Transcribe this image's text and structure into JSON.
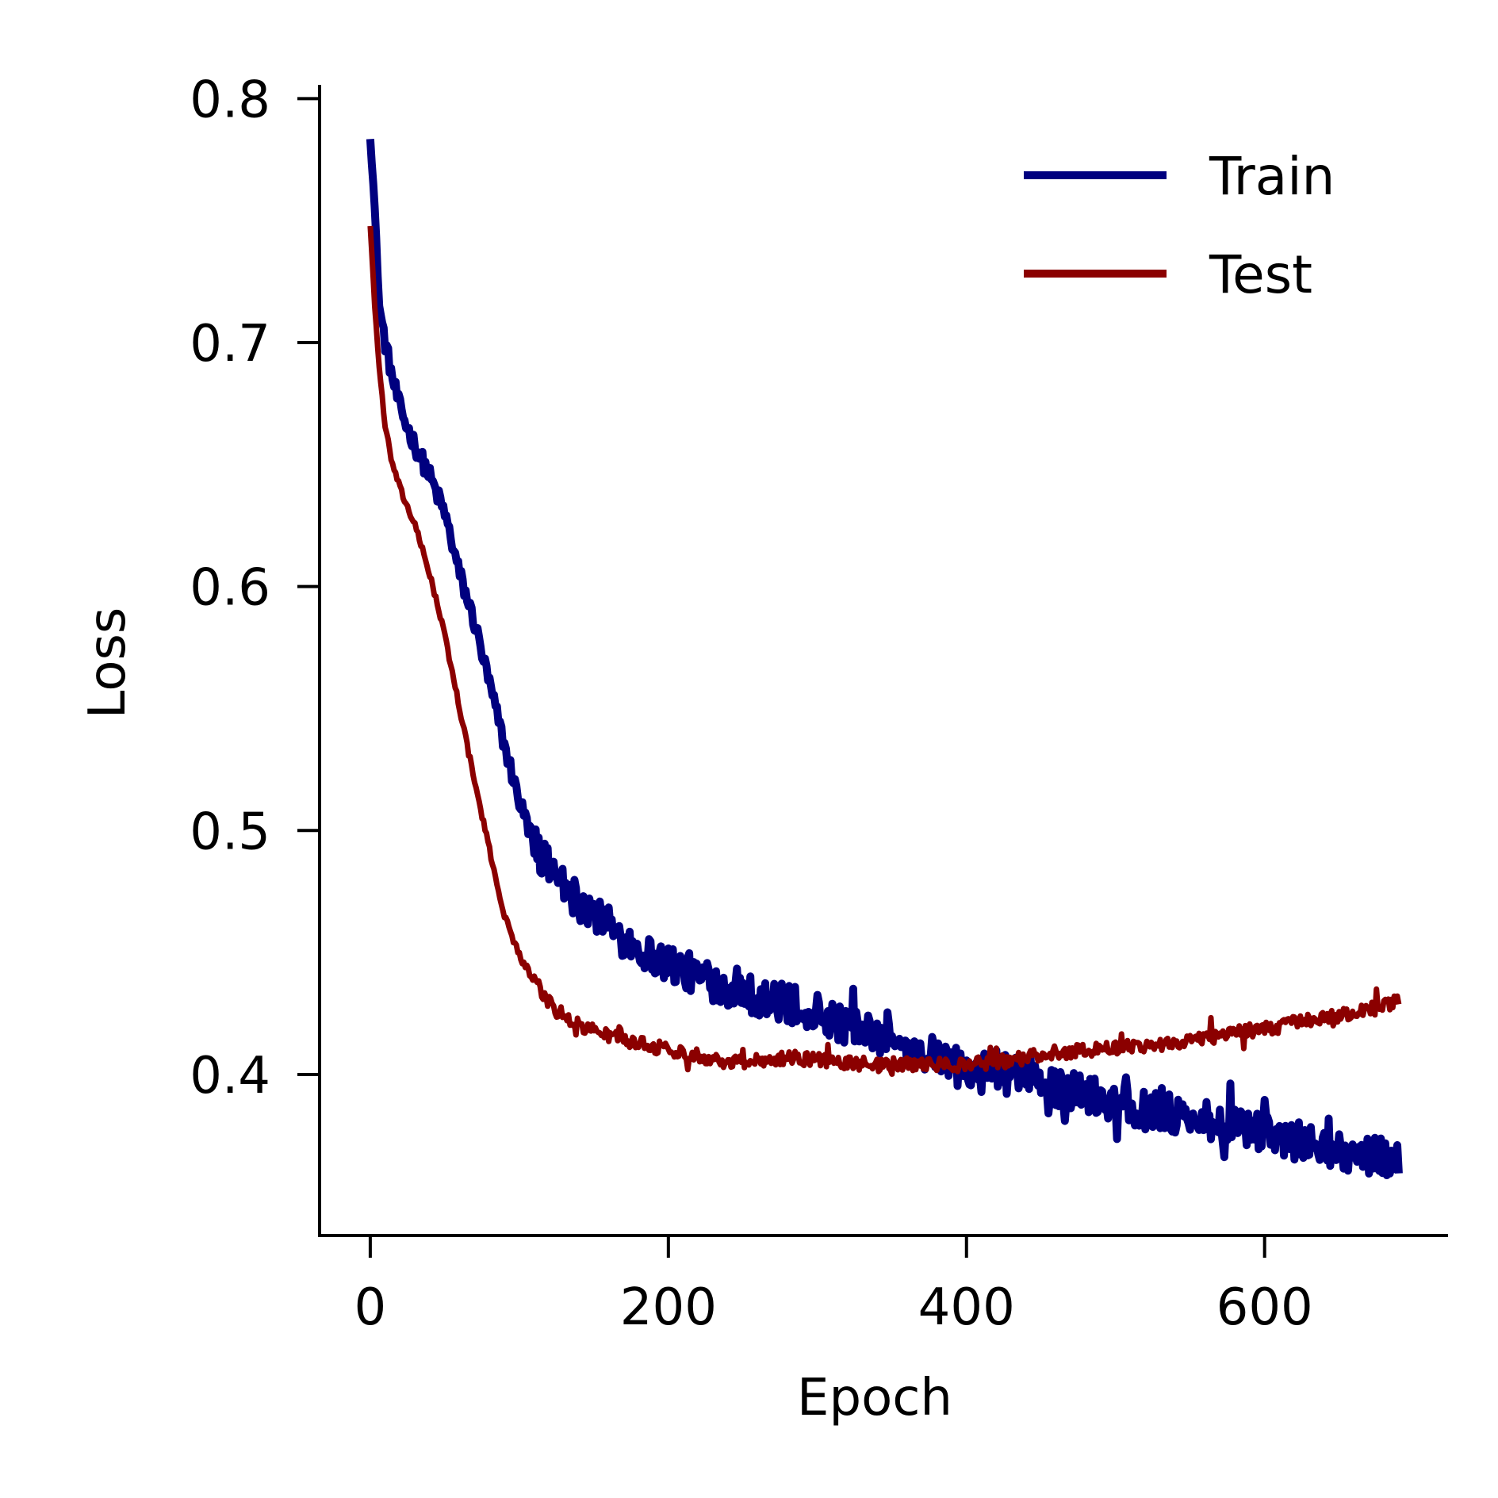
{
  "chart_data": {
    "type": "line",
    "title": "",
    "xlabel": "Epoch",
    "ylabel": "Loss",
    "xlim": [
      -34,
      722
    ],
    "ylim": [
      0.334,
      0.805
    ],
    "xticks": [
      0,
      200,
      400,
      600
    ],
    "yticks": [
      0.4,
      0.5,
      0.6,
      0.7,
      0.8
    ],
    "xtick_labels": [
      "0",
      "200",
      "400",
      "600"
    ],
    "ytick_labels": [
      "0.4",
      "0.5",
      "0.6",
      "0.7",
      "0.8"
    ],
    "grid": false,
    "legend_position": "top-right",
    "series": [
      {
        "name": "Train",
        "color": "#00007f",
        "noise": "high",
        "x": [
          0,
          3,
          6,
          10,
          15,
          20,
          25,
          30,
          40,
          50,
          60,
          70,
          80,
          90,
          100,
          110,
          120,
          130,
          140,
          150,
          160,
          170,
          180,
          190,
          200,
          210,
          220,
          230,
          240,
          250,
          260,
          270,
          280,
          290,
          300,
          310,
          320,
          330,
          340,
          350,
          360,
          370,
          380,
          390,
          400,
          420,
          440,
          460,
          480,
          500,
          520,
          540,
          560,
          580,
          600,
          620,
          640,
          660,
          680,
          690
        ],
        "y": [
          0.785,
          0.755,
          0.715,
          0.7,
          0.685,
          0.673,
          0.665,
          0.658,
          0.645,
          0.63,
          0.605,
          0.585,
          0.56,
          0.535,
          0.512,
          0.495,
          0.485,
          0.478,
          0.472,
          0.466,
          0.461,
          0.456,
          0.452,
          0.448,
          0.446,
          0.443,
          0.44,
          0.438,
          0.436,
          0.434,
          0.432,
          0.43,
          0.429,
          0.427,
          0.425,
          0.423,
          0.42,
          0.418,
          0.415,
          0.413,
          0.411,
          0.409,
          0.407,
          0.405,
          0.404,
          0.401,
          0.398,
          0.395,
          0.392,
          0.389,
          0.386,
          0.384,
          0.381,
          0.378,
          0.376,
          0.373,
          0.37,
          0.368,
          0.366,
          0.365
        ]
      },
      {
        "name": "Test",
        "color": "#8b0000",
        "noise": "low",
        "x": [
          0,
          3,
          6,
          10,
          15,
          20,
          30,
          40,
          50,
          60,
          70,
          80,
          90,
          100,
          110,
          120,
          130,
          140,
          160,
          180,
          200,
          220,
          240,
          260,
          280,
          300,
          320,
          340,
          360,
          380,
          400,
          420,
          440,
          460,
          480,
          500,
          520,
          540,
          560,
          580,
          600,
          620,
          640,
          660,
          680,
          690
        ],
        "y": [
          0.748,
          0.715,
          0.69,
          0.665,
          0.65,
          0.64,
          0.625,
          0.605,
          0.58,
          0.55,
          0.52,
          0.492,
          0.465,
          0.449,
          0.438,
          0.43,
          0.424,
          0.42,
          0.416,
          0.413,
          0.41,
          0.408,
          0.405,
          0.406,
          0.407,
          0.406,
          0.405,
          0.404,
          0.404,
          0.404,
          0.404,
          0.405,
          0.407,
          0.409,
          0.41,
          0.411,
          0.412,
          0.413,
          0.415,
          0.417,
          0.419,
          0.421,
          0.423,
          0.425,
          0.428,
          0.43
        ]
      }
    ]
  }
}
